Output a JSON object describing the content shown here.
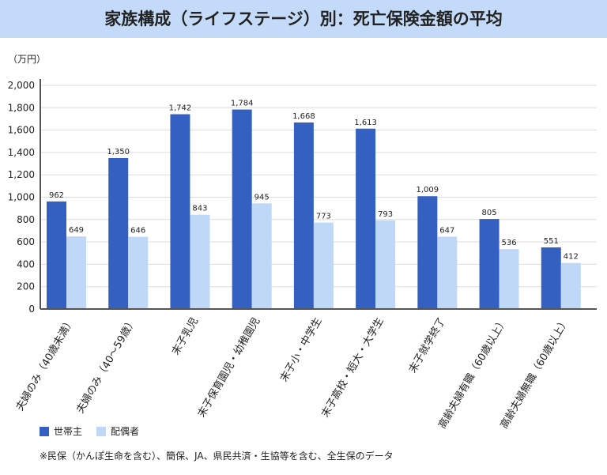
{
  "title": "家族構成（ライフステージ）別：死亡保険金額の平均",
  "note": "※民保（かんぽ生命を含む）、簡保、JA、県民共済・生協等を含む、全生保のデータ",
  "colors": {
    "head": "#3461c1",
    "spouse": "#bfd8f8"
  },
  "chart_data": {
    "type": "bar",
    "ylabel": "（万円）",
    "ylim": [
      0,
      2000
    ],
    "yticks": [
      "0",
      "200",
      "400",
      "600",
      "800",
      "1,000",
      "1,200",
      "1,400",
      "1,600",
      "1,800",
      "2,000"
    ],
    "grid": true,
    "legend_position": "bottom-left",
    "categories": [
      "夫婦のみ（40歳未満）",
      "夫婦のみ（40〜59歳）",
      "末子乳児",
      "末子保育園児・幼稚園児",
      "末子小・中学生",
      "末子高校・短大・大学生",
      "末子就学終了",
      "高齢夫婦有職（60歳以上）",
      "高齢夫婦無職（60歳以上）"
    ],
    "series": [
      {
        "name": "世帯主",
        "values": [
          962,
          1350,
          1742,
          1784,
          1668,
          1613,
          1009,
          805,
          551
        ],
        "labels": [
          "962",
          "1,350",
          "1,742",
          "1,784",
          "1,668",
          "1,613",
          "1,009",
          "805",
          "551"
        ]
      },
      {
        "name": "配偶者",
        "values": [
          649,
          646,
          843,
          945,
          773,
          793,
          647,
          536,
          412
        ],
        "labels": [
          "649",
          "646",
          "843",
          "945",
          "773",
          "793",
          "647",
          "536",
          "412"
        ]
      }
    ]
  }
}
